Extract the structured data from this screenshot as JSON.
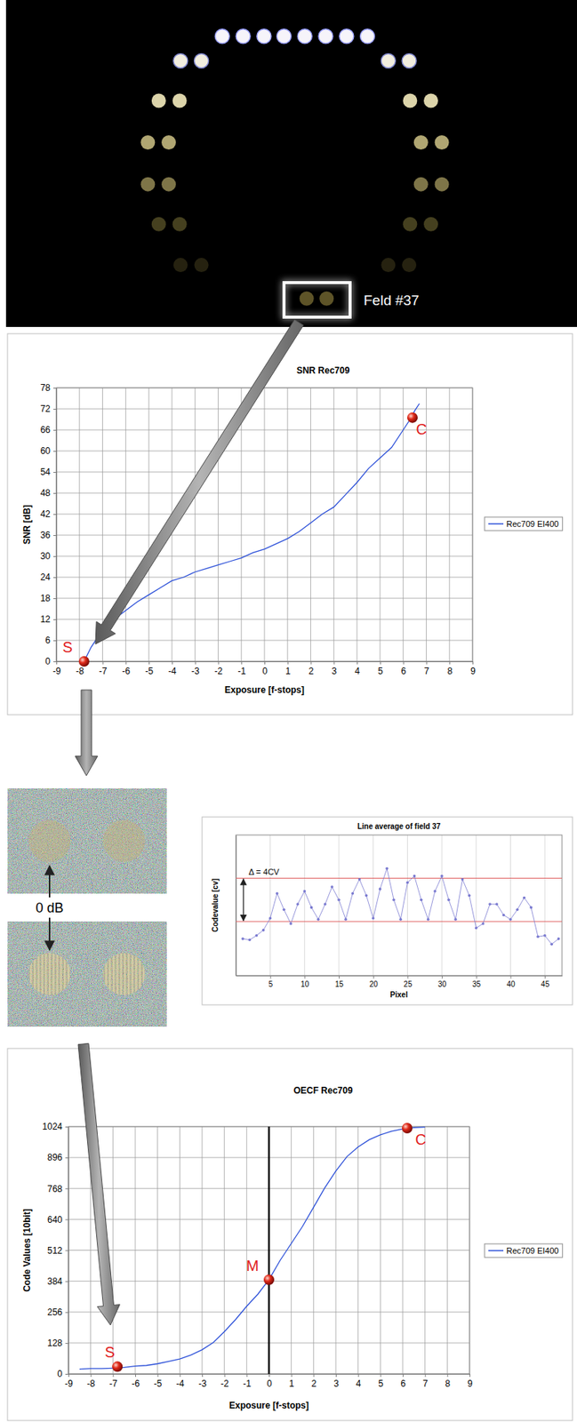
{
  "photo": {
    "label": "Feld #37"
  },
  "noise_crops": {
    "label": "0 dB"
  },
  "chart_data": [
    {
      "type": "line",
      "title": "SNR Rec709",
      "x_label": "Exposure [f-stops]",
      "y_label": "SNR [dB]",
      "x": [
        -7.8,
        -7.5,
        -7,
        -6.5,
        -6,
        -5.5,
        -5,
        -4.5,
        -4,
        -3.5,
        -3,
        -2.5,
        -2,
        -1.5,
        -1,
        -0.5,
        0,
        0.5,
        1,
        1.5,
        2,
        2.5,
        3,
        3.5,
        4,
        4.5,
        5,
        5.5,
        6,
        6.3,
        6.5,
        6.7
      ],
      "series": [
        {
          "name": "Rec709 EI400",
          "color": "#2b4fd8",
          "values": [
            0,
            4,
            9,
            12,
            14.5,
            17,
            19,
            21,
            23,
            24,
            25.5,
            26.5,
            27.5,
            28.5,
            29.5,
            31,
            32,
            33.5,
            35,
            37,
            39.5,
            42,
            44,
            47.5,
            51,
            55,
            58,
            61,
            66,
            69,
            71.5,
            73.5
          ]
        }
      ],
      "xlim": [
        -9,
        9
      ],
      "xticks": [
        -9,
        -8,
        -7,
        -6,
        -5,
        -4,
        -3,
        -2,
        -1,
        0,
        1,
        2,
        3,
        4,
        5,
        6,
        7,
        8,
        9
      ],
      "ylim": [
        0,
        78
      ],
      "yticks": [
        0,
        6,
        12,
        18,
        24,
        30,
        36,
        42,
        48,
        54,
        60,
        66,
        72,
        78
      ],
      "grid": true,
      "legend": "right",
      "points": [
        {
          "label": "S",
          "x": -7.8,
          "y": 0
        },
        {
          "label": "C",
          "x": 6.4,
          "y": 69.5
        }
      ]
    },
    {
      "type": "line",
      "title": "Line average of field 37",
      "x_label": "Pixel",
      "y_label": "Codevalue [cv]",
      "x": [
        1,
        2,
        3,
        4,
        5,
        6,
        7,
        8,
        9,
        10,
        11,
        12,
        13,
        14,
        15,
        16,
        17,
        18,
        19,
        20,
        21,
        22,
        23,
        24,
        25,
        26,
        27,
        28,
        29,
        30,
        31,
        32,
        33,
        34,
        35,
        36,
        37,
        38,
        39,
        40,
        41,
        42,
        43,
        44,
        45,
        46,
        47
      ],
      "series": [
        {
          "color": "#7a7ad0",
          "marker": "circle",
          "values": [
            58.4,
            58.3,
            58.7,
            59.2,
            60.3,
            62.6,
            61.1,
            59.8,
            61.6,
            62.8,
            61.3,
            60.2,
            61.6,
            63.2,
            62.0,
            60.2,
            62.6,
            63.9,
            62.4,
            60.3,
            63.0,
            64.9,
            62.0,
            60.2,
            63.6,
            64.2,
            62.0,
            60.2,
            62.8,
            64.2,
            62.0,
            60.2,
            63.9,
            62.4,
            59.4,
            59.8,
            61.6,
            61.6,
            60.6,
            60.2,
            61.1,
            62.2,
            61.3,
            58.6,
            58.7,
            57.9,
            58.4
          ]
        }
      ],
      "xlim": [
        0,
        47.5
      ],
      "xticks": [
        5,
        10,
        15,
        20,
        25,
        30,
        35,
        40,
        45
      ],
      "ylim": [
        55,
        68
      ],
      "grid": true,
      "tick_labels": "x",
      "reference_lines": [
        60,
        64
      ],
      "annotation": "Δ = 4CV"
    },
    {
      "type": "line",
      "title": "OECF Rec709",
      "x_label": "Exposure [f-stops]",
      "y_label": "Code Values [10bit]",
      "x": [
        -8.5,
        -8,
        -7.5,
        -7,
        -6.5,
        -6,
        -5.5,
        -5,
        -4.5,
        -4,
        -3.5,
        -3,
        -2.5,
        -2,
        -1.5,
        -1,
        -0.5,
        0,
        0.5,
        1,
        1.5,
        2,
        2.5,
        3,
        3.5,
        4,
        4.5,
        5,
        5.5,
        6,
        6.5,
        7
      ],
      "series": [
        {
          "name": "Rec709 EI400",
          "color": "#2b4fd8",
          "values": [
            20,
            22,
            22,
            24,
            27,
            32,
            35,
            42,
            52,
            62,
            78,
            100,
            130,
            175,
            225,
            280,
            330,
            390,
            470,
            540,
            610,
            690,
            770,
            840,
            900,
            940,
            970,
            990,
            1005,
            1014,
            1020,
            1022
          ]
        }
      ],
      "xlim": [
        -9,
        9
      ],
      "xticks": [
        -9,
        -8,
        -7,
        -6,
        -5,
        -4,
        -3,
        -2,
        -1,
        0,
        1,
        2,
        3,
        4,
        5,
        6,
        7,
        8,
        9
      ],
      "ylim": [
        0,
        1024
      ],
      "yticks": [
        0,
        128,
        256,
        384,
        512,
        640,
        768,
        896,
        1024
      ],
      "grid": true,
      "legend": "right",
      "reference_x": 0,
      "points": [
        {
          "label": "S",
          "x": -6.8,
          "y": 30
        },
        {
          "label": "M",
          "x": 0,
          "y": 390
        },
        {
          "label": "C",
          "x": 6.2,
          "y": 1018
        }
      ]
    }
  ]
}
